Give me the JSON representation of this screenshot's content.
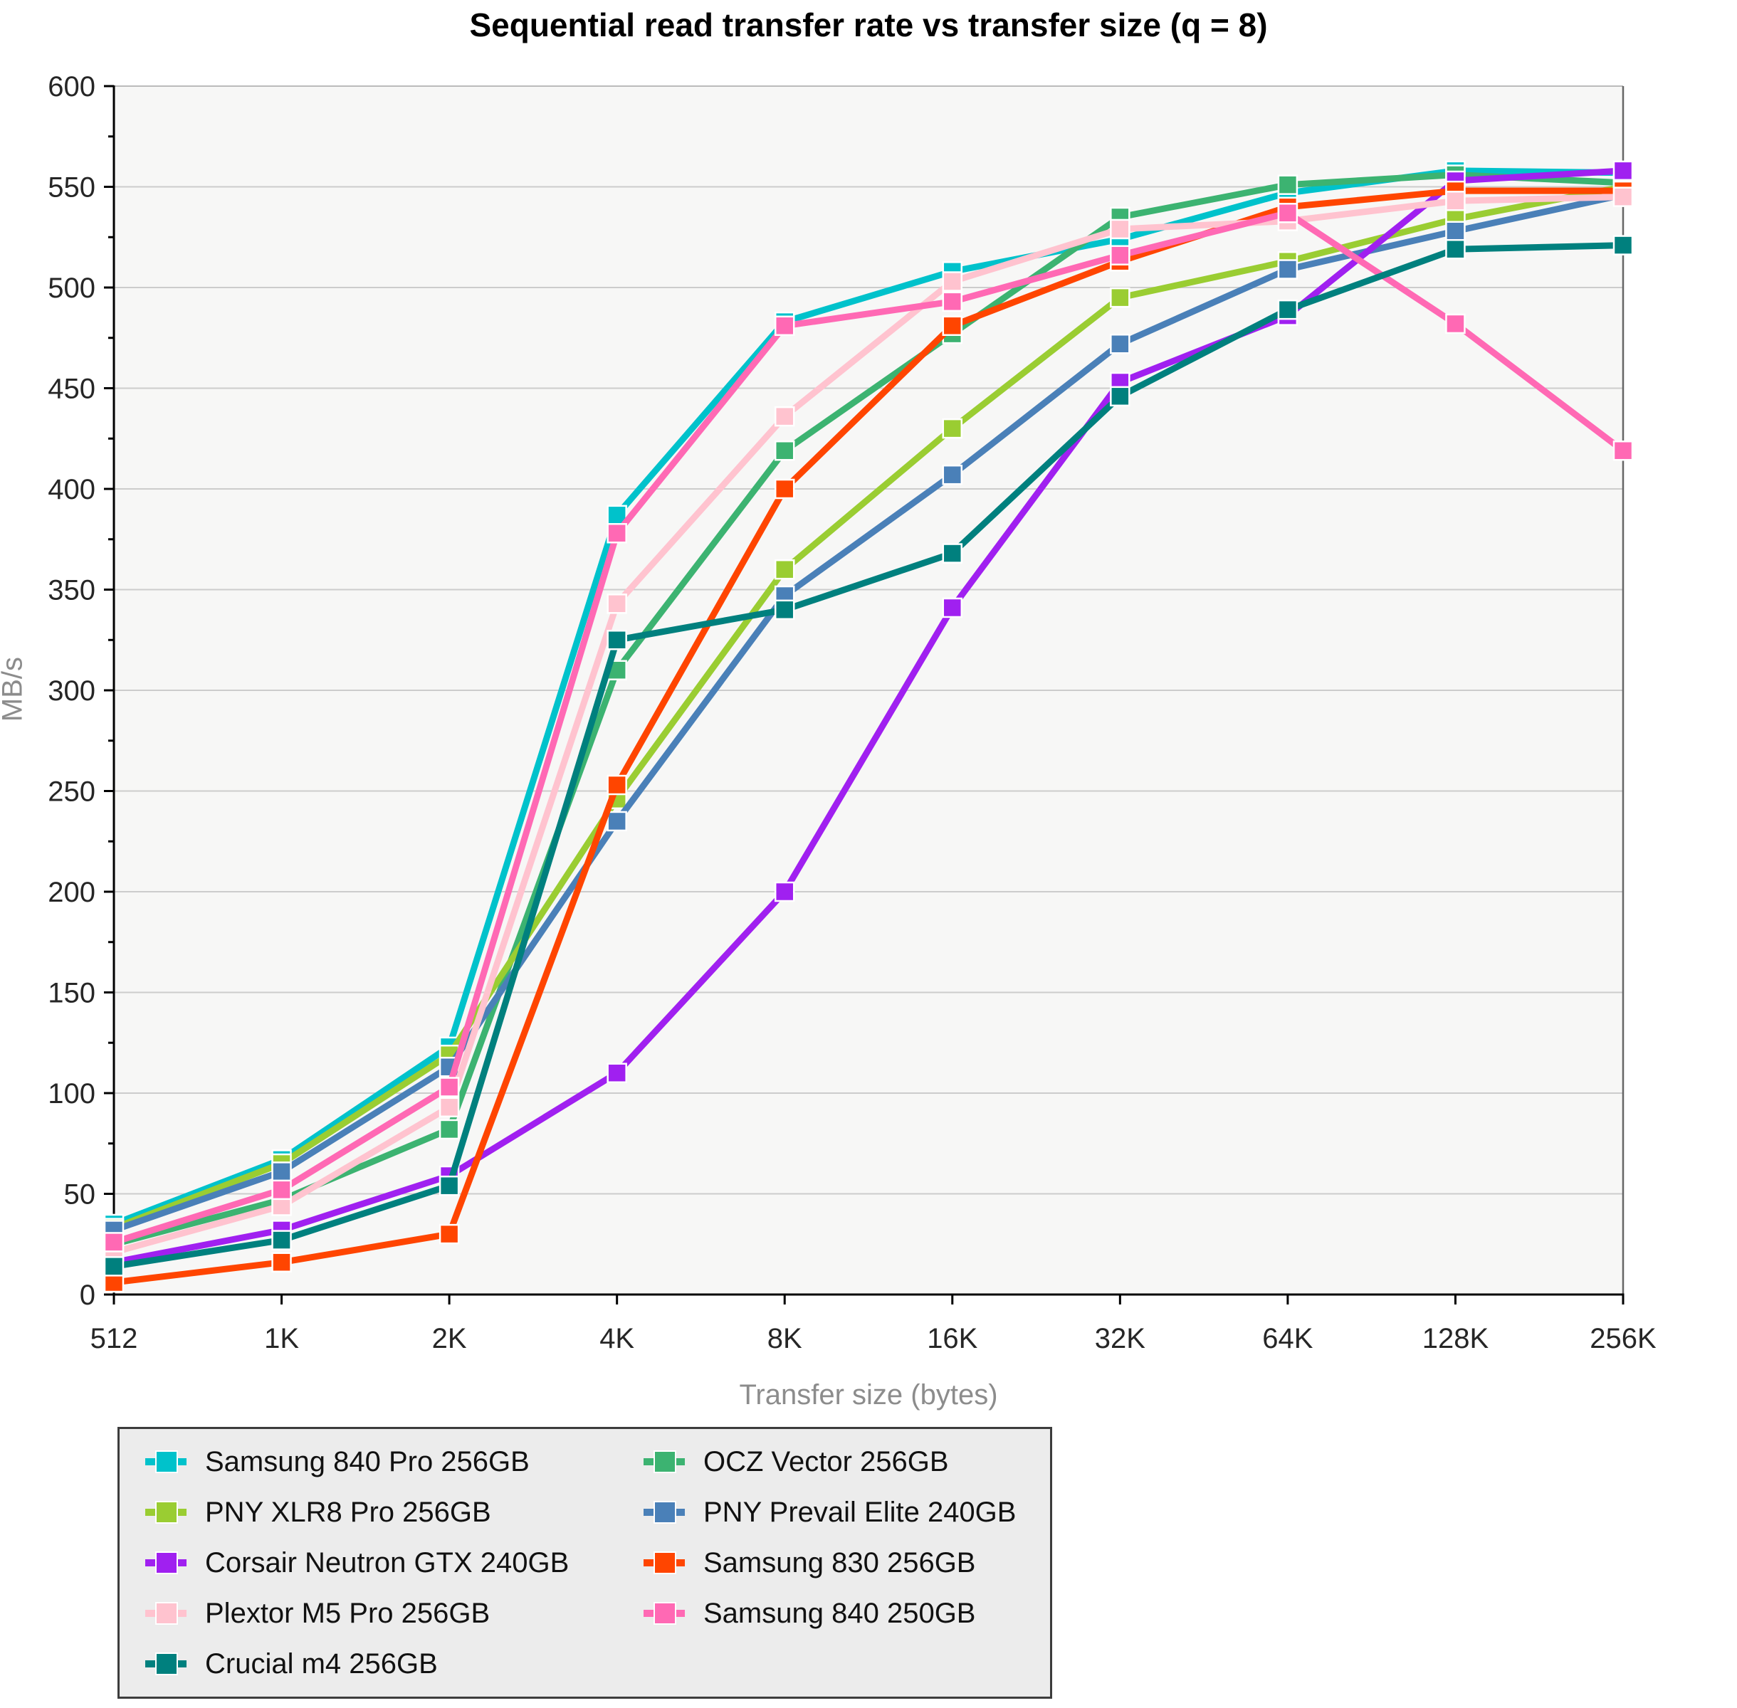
{
  "title": "Sequential read transfer rate vs transfer size (q = 8)",
  "chart_data": {
    "type": "line",
    "title": "Sequential read transfer rate vs transfer size (q = 8)",
    "xlabel": "Transfer size (bytes)",
    "ylabel": "MB/s",
    "categories": [
      "512",
      "1K",
      "2K",
      "4K",
      "8K",
      "16K",
      "32K",
      "64K",
      "128K",
      "256K"
    ],
    "ylim": [
      0,
      600
    ],
    "ytick_step": 50,
    "yminor_step": 25,
    "grid": "horizontal",
    "legend_position": "bottom-left, two columns",
    "series": [
      {
        "name": "Samsung 840 Pro 256GB",
        "color": "#00c2cb",
        "values": [
          35,
          67,
          123,
          387,
          483,
          508,
          524,
          547,
          558,
          557
        ]
      },
      {
        "name": "OCZ Vector 256GB",
        "color": "#3cb371",
        "values": [
          25,
          47,
          82,
          310,
          419,
          477,
          535,
          551,
          556,
          552
        ]
      },
      {
        "name": "PNY XLR8 Pro 256GB",
        "color": "#9acd32",
        "values": [
          33,
          65,
          119,
          246,
          360,
          430,
          495,
          513,
          534,
          550
        ]
      },
      {
        "name": "PNY Prevail Elite 240GB",
        "color": "#4a80b8",
        "values": [
          32,
          61,
          113,
          235,
          347,
          407,
          472,
          509,
          528,
          546
        ]
      },
      {
        "name": "Corsair Neutron GTX 240GB",
        "color": "#a020f0",
        "values": [
          16,
          32,
          59,
          110,
          200,
          341,
          453,
          486,
          553,
          558
        ]
      },
      {
        "name": "Samsung 830 256GB",
        "color": "#ff4500",
        "values": [
          6,
          16,
          30,
          253,
          400,
          481,
          513,
          540,
          548,
          548
        ]
      },
      {
        "name": "Plextor M5 Pro 256GB",
        "color": "#ffc3cf",
        "values": [
          21,
          44,
          93,
          343,
          436,
          503,
          529,
          533,
          543,
          545
        ]
      },
      {
        "name": "Samsung 840 250GB",
        "color": "#ff69b4",
        "values": [
          26,
          52,
          103,
          378,
          481,
          493,
          516,
          537,
          482,
          419
        ]
      },
      {
        "name": "Crucial m4 256GB",
        "color": "#00807e",
        "values": [
          14,
          27,
          54,
          325,
          340,
          368,
          446,
          489,
          519,
          521
        ]
      }
    ],
    "style": {
      "plot_bg": "#f7f7f6",
      "gridline_color": "#cccccc",
      "axis_color": "#000000",
      "border_top_color": "#bbbbbb",
      "border_right_color": "#666666",
      "tick_label_color": "#262626",
      "axis_title_color": "#8c8c8c"
    }
  }
}
